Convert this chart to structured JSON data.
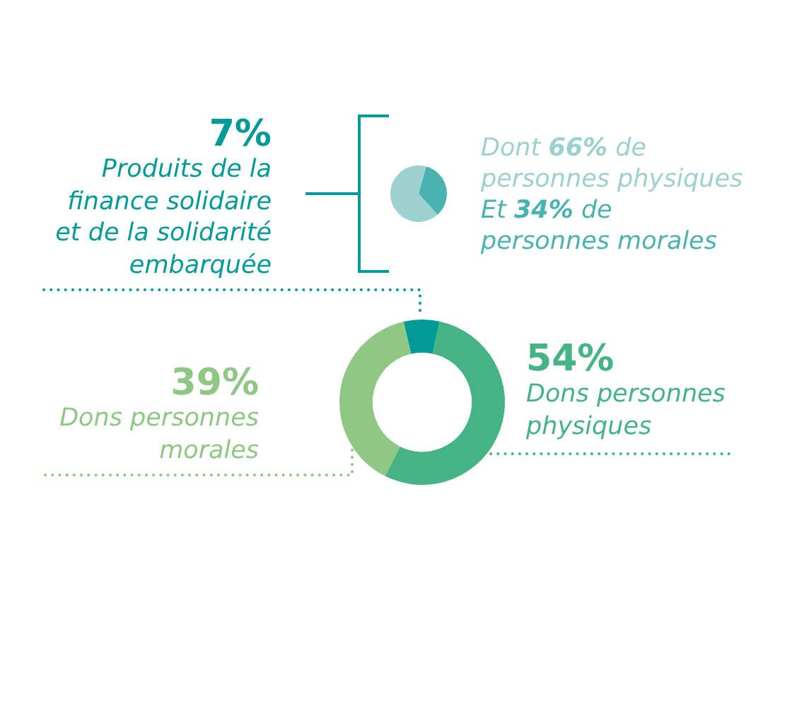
{
  "chart_data": [
    {
      "type": "donut",
      "categories": [
        "Produits de la finance solidaire et de la solidarité embarquée",
        "Dons personnes physiques",
        "Dons personnes morales"
      ],
      "values": [
        7,
        54,
        39
      ],
      "colors": [
        "#009b96",
        "#45b384",
        "#8fc785"
      ],
      "value_labels": [
        "7%",
        "54%",
        "39%"
      ]
    },
    {
      "type": "pie",
      "categories": [
        null,
        null
      ],
      "values": [
        66,
        34
      ],
      "colors": [
        "#9dd1cf",
        "#4ab3b2"
      ],
      "annotations": [
        "Dont 66% de personnes physiques",
        "Et 34% de personnes morales"
      ]
    }
  ]
}
